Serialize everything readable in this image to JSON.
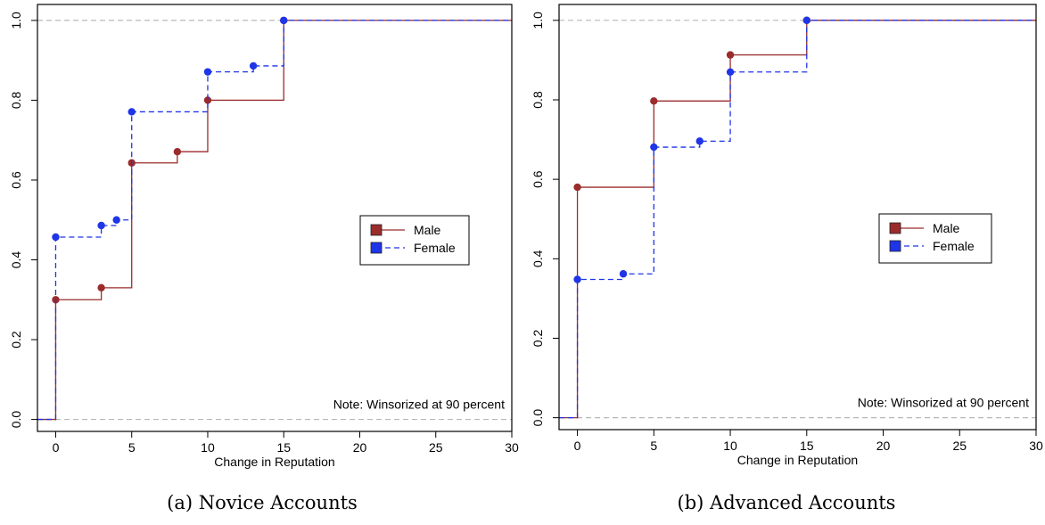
{
  "colors": {
    "male": "#9B2C2C",
    "female": "#1F35E8",
    "ref": "#B8B8B8"
  },
  "chart_data": [
    {
      "type": "line",
      "step": true,
      "caption": "(a) Novice Accounts",
      "xlabel": "Change in Reputation",
      "ylabel": "",
      "xlim": [
        -1.2,
        30
      ],
      "ylim": [
        -0.03,
        1.04
      ],
      "xticks": [
        0,
        5,
        10,
        15,
        20,
        25,
        30
      ],
      "yticks": [
        0.0,
        0.2,
        0.4,
        0.6,
        0.8,
        1.0
      ],
      "xtick_labels": [
        "0",
        "5",
        "10",
        "15",
        "20",
        "25",
        "30"
      ],
      "ytick_labels": [
        "0.0",
        "0.2",
        "0.4",
        "0.6",
        "0.8",
        "1.0"
      ],
      "reference_lines": [
        0,
        1
      ],
      "note": "Note: Winsorized at 90 percent",
      "legend": {
        "position": "right",
        "entries": [
          "Male",
          "Female"
        ]
      },
      "series": [
        {
          "name": "Male",
          "style": "solid",
          "x": [
            0,
            3,
            5,
            8,
            10,
            15
          ],
          "y": [
            0.3,
            0.33,
            0.643,
            0.671,
            0.8,
            1.0
          ]
        },
        {
          "name": "Female",
          "style": "dashed",
          "x": [
            0,
            3,
            4,
            5,
            10,
            13,
            15
          ],
          "y": [
            0.457,
            0.486,
            0.5,
            0.771,
            0.871,
            0.886,
            1.0
          ]
        }
      ]
    },
    {
      "type": "line",
      "step": true,
      "caption": "(b) Advanced Accounts",
      "xlabel": "Change in Reputation",
      "ylabel": "",
      "xlim": [
        -1.2,
        30
      ],
      "ylim": [
        -0.03,
        1.04
      ],
      "xticks": [
        0,
        5,
        10,
        15,
        20,
        25,
        30
      ],
      "yticks": [
        0.0,
        0.2,
        0.4,
        0.6,
        0.8,
        1.0
      ],
      "xtick_labels": [
        "0",
        "5",
        "10",
        "15",
        "20",
        "25",
        "30"
      ],
      "ytick_labels": [
        "0.0",
        "0.2",
        "0.4",
        "0.6",
        "0.8",
        "1.0"
      ],
      "reference_lines": [
        0,
        1
      ],
      "note": "Note: Winsorized at 90 percent",
      "legend": {
        "position": "right",
        "entries": [
          "Male",
          "Female"
        ]
      },
      "series": [
        {
          "name": "Male",
          "style": "solid",
          "x": [
            0,
            5,
            10,
            15
          ],
          "y": [
            0.58,
            0.797,
            0.913,
            1.0
          ]
        },
        {
          "name": "Female",
          "style": "dashed",
          "x": [
            0,
            3,
            5,
            8,
            10,
            15
          ],
          "y": [
            0.348,
            0.362,
            0.681,
            0.696,
            0.87,
            1.0
          ]
        }
      ]
    }
  ]
}
